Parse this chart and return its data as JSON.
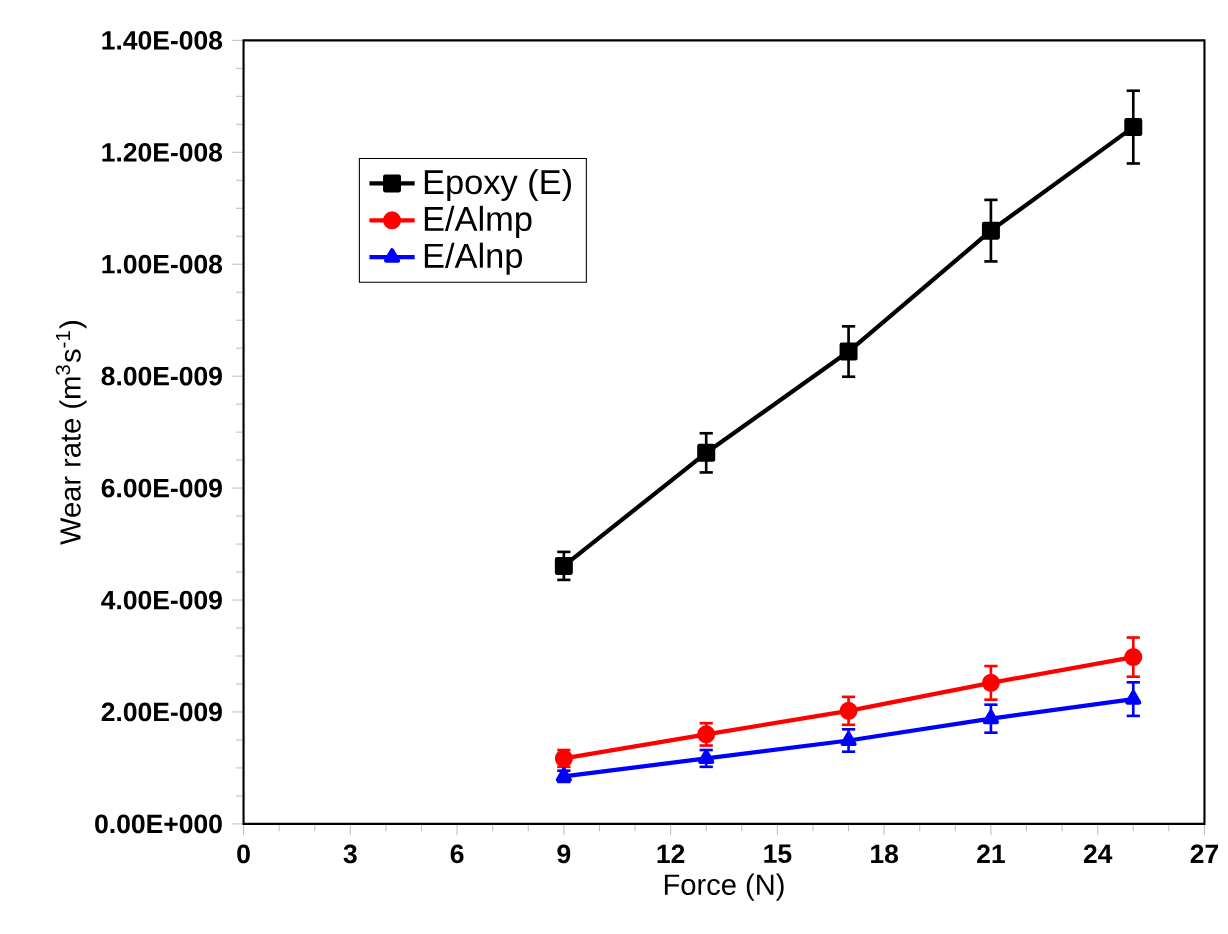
{
  "chart_data": {
    "type": "line",
    "xlabel": "Force (N)",
    "ylabel": "Wear rate (m$^{3}$s$^{-1}$)",
    "x": [
      9,
      13,
      17,
      21,
      25
    ],
    "xlim": [
      0,
      27
    ],
    "xticks": [
      0,
      3,
      6,
      9,
      12,
      15,
      18,
      21,
      24,
      27
    ],
    "ylim": [
      0,
      1.4e-08
    ],
    "yticks": [
      {
        "value": 0,
        "label": "0.00E+000"
      },
      {
        "value": 2e-09,
        "label": "2.00E-009"
      },
      {
        "value": 4e-09,
        "label": "4.00E-009"
      },
      {
        "value": 6e-09,
        "label": "6.00E-009"
      },
      {
        "value": 8e-09,
        "label": "8.00E-009"
      },
      {
        "value": 1e-08,
        "label": "1.00E-008"
      },
      {
        "value": 1.2e-08,
        "label": "1.20E-008"
      },
      {
        "value": 1.4e-08,
        "label": "1.40E-008"
      }
    ],
    "legend": "top left",
    "grid": false,
    "line_style": "solid",
    "series": [
      {
        "name": "Epoxy (E)",
        "color": "#000000",
        "marker": "square",
        "values": [
          4.61e-09,
          6.63e-09,
          8.44e-09,
          1.06e-08,
          1.245e-08
        ],
        "errors": [
          2.5e-10,
          3.5e-10,
          4.5e-10,
          5.5e-10,
          6.5e-10
        ]
      },
      {
        "name": "E/Almp",
        "color": "#ff0000",
        "marker": "circle",
        "values": [
          1.17e-09,
          1.6e-09,
          2.02e-09,
          2.52e-09,
          2.98e-09
        ],
        "errors": [
          1.5e-10,
          2e-10,
          2.5e-10,
          3e-10,
          3.5e-10
        ]
      },
      {
        "name": "E/Alnp",
        "color": "#0000ff",
        "marker": "triangle",
        "values": [
          8.5e-10,
          1.17e-09,
          1.49e-09,
          1.88e-09,
          2.23e-09
        ],
        "errors": [
          1e-10,
          1.5e-10,
          2e-10,
          2.5e-10,
          3e-10
        ]
      }
    ]
  }
}
